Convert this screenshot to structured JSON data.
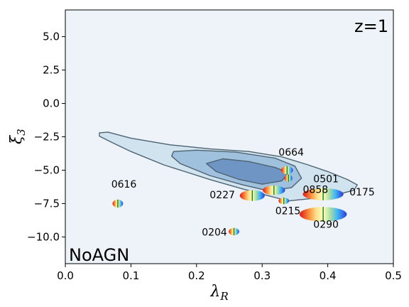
{
  "chart_data": {
    "type": "scatter",
    "title": "",
    "xlabel": "λ",
    "xlabel_sub": "R",
    "ylabel": "ξ",
    "ylabel_sub": "3",
    "xlim": [
      0.0,
      0.5
    ],
    "ylim": [
      -12.0,
      7.0
    ],
    "x_ticks": [
      0.0,
      0.1,
      0.2,
      0.3,
      0.4,
      0.5
    ],
    "x_tick_labels": [
      "0.0",
      "0.1",
      "0.2",
      "0.3",
      "0.4",
      "0.5"
    ],
    "y_ticks": [
      5.0,
      2.5,
      0.0,
      -2.5,
      -5.0,
      -7.5,
      -10.0
    ],
    "y_tick_labels": [
      "5.0",
      "2.5",
      "0.0",
      "−2.5",
      "−5.0",
      "−7.5",
      "−10.0"
    ],
    "redshift_label": "z=1",
    "model_label": "NoAGN",
    "background_color": "#eef3fa",
    "contour_colors": [
      "#d0e3ee",
      "#9fc1de",
      "#6f95c4"
    ],
    "contour_edge_color": "#4e6272",
    "contours": [
      {
        "level": "outer",
        "points": [
          [
            0.052,
            -2.2
          ],
          [
            0.065,
            -2.15
          ],
          [
            0.1,
            -2.6
          ],
          [
            0.16,
            -3.1
          ],
          [
            0.22,
            -3.4
          ],
          [
            0.28,
            -3.6
          ],
          [
            0.33,
            -4.0
          ],
          [
            0.37,
            -4.6
          ],
          [
            0.4,
            -5.1
          ],
          [
            0.43,
            -5.7
          ],
          [
            0.445,
            -6.1
          ],
          [
            0.44,
            -6.5
          ],
          [
            0.4,
            -7.0
          ],
          [
            0.34,
            -7.3
          ],
          [
            0.32,
            -7.05
          ],
          [
            0.27,
            -6.4
          ],
          [
            0.22,
            -5.7
          ],
          [
            0.15,
            -4.6
          ],
          [
            0.1,
            -3.6
          ],
          [
            0.07,
            -2.9
          ],
          [
            0.052,
            -2.45
          ]
        ]
      },
      {
        "level": "middle",
        "points": [
          [
            0.165,
            -3.6
          ],
          [
            0.2,
            -3.5
          ],
          [
            0.26,
            -3.65
          ],
          [
            0.32,
            -4.1
          ],
          [
            0.35,
            -4.7
          ],
          [
            0.36,
            -5.6
          ],
          [
            0.345,
            -6.3
          ],
          [
            0.31,
            -6.55
          ],
          [
            0.27,
            -6.1
          ],
          [
            0.22,
            -5.4
          ],
          [
            0.175,
            -4.5
          ],
          [
            0.162,
            -3.95
          ]
        ]
      },
      {
        "level": "inner",
        "points": [
          [
            0.215,
            -4.5
          ],
          [
            0.24,
            -4.15
          ],
          [
            0.28,
            -4.35
          ],
          [
            0.32,
            -4.8
          ],
          [
            0.34,
            -5.2
          ],
          [
            0.33,
            -5.8
          ],
          [
            0.3,
            -6.05
          ],
          [
            0.265,
            -5.7
          ],
          [
            0.23,
            -5.1
          ]
        ]
      }
    ],
    "objects": [
      {
        "id": "0664",
        "x": 0.338,
        "y": -5.0,
        "label_x": 0.325,
        "label_y": -3.9,
        "width": 0.018,
        "height": 0.6
      },
      {
        "id": "0616",
        "x": 0.08,
        "y": -7.5,
        "label_x": 0.07,
        "label_y": -6.3,
        "width": 0.016,
        "height": 0.6
      },
      {
        "id": "0501",
        "x": 0.34,
        "y": -5.6,
        "label_x": 0.378,
        "label_y": -5.9,
        "width": 0.012,
        "height": 0.55
      },
      {
        "id": "0858",
        "x": 0.318,
        "y": -6.5,
        "label_x": 0.362,
        "label_y": -6.7,
        "width": 0.034,
        "height": 0.7
      },
      {
        "id": "0175",
        "x": 0.393,
        "y": -6.8,
        "label_x": 0.433,
        "label_y": -6.9,
        "width": 0.062,
        "height": 0.9
      },
      {
        "id": "0227",
        "x": 0.285,
        "y": -6.9,
        "label_x": 0.22,
        "label_y": -7.1,
        "width": 0.038,
        "height": 0.8
      },
      {
        "id": "0215",
        "x": 0.333,
        "y": -7.3,
        "label_x": 0.32,
        "label_y": -8.3,
        "width": 0.016,
        "height": 0.5
      },
      {
        "id": "0290",
        "x": 0.393,
        "y": -8.3,
        "label_x": 0.378,
        "label_y": -9.3,
        "width": 0.072,
        "height": 1.1
      },
      {
        "id": "0204",
        "x": 0.257,
        "y": -9.6,
        "label_x": 0.208,
        "label_y": -9.9,
        "width": 0.016,
        "height": 0.55
      }
    ]
  }
}
